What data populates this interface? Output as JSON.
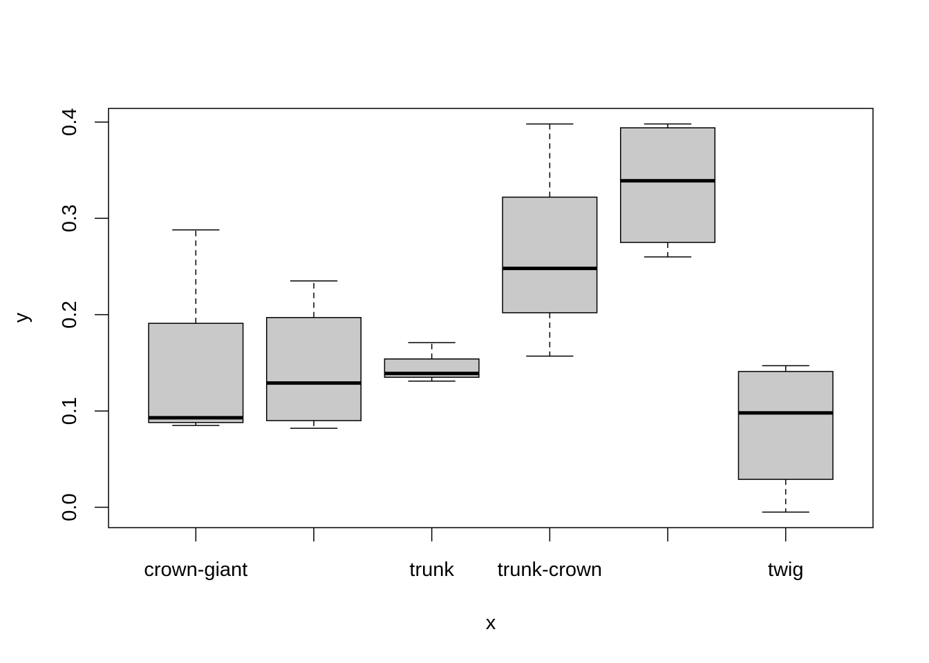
{
  "chart_data": {
    "type": "boxplot",
    "title": "",
    "xlabel": "x",
    "ylabel": "y",
    "categories": [
      "crown-giant",
      "",
      "trunk",
      "trunk-crown",
      "",
      "twig"
    ],
    "yticks": [
      "0.0",
      "0.1",
      "0.2",
      "0.3",
      "0.4"
    ],
    "ytick_values": [
      0.0,
      0.1,
      0.2,
      0.3,
      0.4
    ],
    "grid": false,
    "box_fill": "#c9c9c9",
    "boxes": [
      {
        "whisker_low": 0.085,
        "q1": 0.088,
        "median": 0.093,
        "q3": 0.191,
        "whisker_high": 0.288
      },
      {
        "whisker_low": 0.082,
        "q1": 0.09,
        "median": 0.129,
        "q3": 0.197,
        "whisker_high": 0.235
      },
      {
        "whisker_low": 0.131,
        "q1": 0.135,
        "median": 0.139,
        "q3": 0.154,
        "whisker_high": 0.171
      },
      {
        "whisker_low": 0.157,
        "q1": 0.202,
        "median": 0.248,
        "q3": 0.322,
        "whisker_high": 0.398
      },
      {
        "whisker_low": 0.26,
        "q1": 0.275,
        "median": 0.339,
        "q3": 0.394,
        "whisker_high": 0.398
      },
      {
        "whisker_low": -0.005,
        "q1": 0.029,
        "median": 0.098,
        "q3": 0.141,
        "whisker_high": 0.147
      }
    ]
  }
}
